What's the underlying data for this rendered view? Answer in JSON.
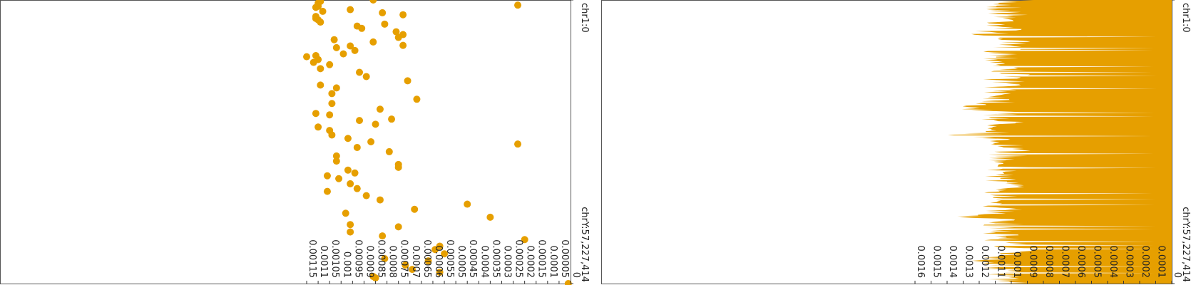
{
  "colors": {
    "accent": "#E69F00",
    "frame": "#555555",
    "tick": "#333333"
  },
  "chart_data": [
    {
      "type": "scatter",
      "orientation": "vertical-genome-track",
      "genome_axis": {
        "start_label": "chr1:0",
        "end_label": "chrY:57,227,414"
      },
      "value_axis": {
        "range": [
          0,
          0.00115
        ],
        "ticks": [
          0.00115,
          0.0011,
          0.00105,
          0.001,
          0.00095,
          0.0009,
          0.00085,
          0.0008,
          0.00075,
          0.0007,
          0.00065,
          0.0006,
          0.00055,
          0.0005,
          0.00045,
          0.0004,
          0.00035,
          0.0003,
          0.00025,
          0.0002,
          0.00015,
          0.0001,
          5e-05,
          0
        ],
        "tick_labels": [
          "0.00115",
          "0.0011",
          "0.00105",
          "0.001",
          "0.00095",
          "0.0009",
          "0.00085",
          "0.0008",
          "0.00075",
          "0.0007",
          "0.00065",
          "0.0006",
          "0.00055",
          "0.0005",
          "0.00045",
          "0.0004",
          "0.00035",
          "0.0003",
          "0.00025",
          "0.0002",
          "0.00015",
          "0.0001",
          "0.00005",
          "0"
        ]
      },
      "points": [
        {
          "g": 0.0,
          "v": 0.00086
        },
        {
          "g": 0.005,
          "v": 0.00109
        },
        {
          "g": 0.011,
          "v": 0.0011
        },
        {
          "g": 0.018,
          "v": 0.00023
        },
        {
          "g": 0.022,
          "v": 0.0011
        },
        {
          "g": 0.026,
          "v": 0.00111
        },
        {
          "g": 0.034,
          "v": 0.00096
        },
        {
          "g": 0.04,
          "v": 0.00108
        },
        {
          "g": 0.045,
          "v": 0.00082
        },
        {
          "g": 0.052,
          "v": 0.00073
        },
        {
          "g": 0.058,
          "v": 0.00111
        },
        {
          "g": 0.065,
          "v": 0.00111
        },
        {
          "g": 0.07,
          "v": 0.0011
        },
        {
          "g": 0.078,
          "v": 0.00109
        },
        {
          "g": 0.085,
          "v": 0.00081
        },
        {
          "g": 0.092,
          "v": 0.00093
        },
        {
          "g": 0.1,
          "v": 0.00091
        },
        {
          "g": 0.112,
          "v": 0.00076
        },
        {
          "g": 0.122,
          "v": 0.00073
        },
        {
          "g": 0.132,
          "v": 0.00075
        },
        {
          "g": 0.14,
          "v": 0.00103
        },
        {
          "g": 0.148,
          "v": 0.00086
        },
        {
          "g": 0.16,
          "v": 0.00073
        },
        {
          "g": 0.162,
          "v": 0.00096
        },
        {
          "g": 0.168,
          "v": 0.00102
        },
        {
          "g": 0.178,
          "v": 0.00094
        },
        {
          "g": 0.19,
          "v": 0.00099
        },
        {
          "g": 0.196,
          "v": 0.00111
        },
        {
          "g": 0.2,
          "v": 0.00115
        },
        {
          "g": 0.21,
          "v": 0.0011
        },
        {
          "g": 0.22,
          "v": 0.00112
        },
        {
          "g": 0.228,
          "v": 0.00105
        },
        {
          "g": 0.242,
          "v": 0.00109
        },
        {
          "g": 0.255,
          "v": 0.00092
        },
        {
          "g": 0.27,
          "v": 0.00089
        },
        {
          "g": 0.285,
          "v": 0.00071
        },
        {
          "g": 0.3,
          "v": 0.00109
        },
        {
          "g": 0.31,
          "v": 0.00102
        },
        {
          "g": 0.33,
          "v": 0.00104
        },
        {
          "g": 0.35,
          "v": 0.00067
        },
        {
          "g": 0.365,
          "v": 0.00104
        },
        {
          "g": 0.385,
          "v": 0.00083
        },
        {
          "g": 0.4,
          "v": 0.00111
        },
        {
          "g": 0.405,
          "v": 0.00105
        },
        {
          "g": 0.42,
          "v": 0.00078
        },
        {
          "g": 0.425,
          "v": 0.00092
        },
        {
          "g": 0.438,
          "v": 0.00085
        },
        {
          "g": 0.448,
          "v": 0.0011
        },
        {
          "g": 0.46,
          "v": 0.00105
        },
        {
          "g": 0.476,
          "v": 0.00104
        },
        {
          "g": 0.488,
          "v": 0.00097
        },
        {
          "g": 0.5,
          "v": 0.00087
        },
        {
          "g": 0.508,
          "v": 0.00023
        },
        {
          "g": 0.52,
          "v": 0.00093
        },
        {
          "g": 0.535,
          "v": 0.00079
        },
        {
          "g": 0.55,
          "v": 0.00102
        },
        {
          "g": 0.568,
          "v": 0.00102
        },
        {
          "g": 0.58,
          "v": 0.00075
        },
        {
          "g": 0.59,
          "v": 0.00075
        },
        {
          "g": 0.6,
          "v": 0.00097
        },
        {
          "g": 0.61,
          "v": 0.00094
        },
        {
          "g": 0.62,
          "v": 0.00106
        },
        {
          "g": 0.63,
          "v": 0.00101
        },
        {
          "g": 0.648,
          "v": 0.00096
        },
        {
          "g": 0.665,
          "v": 0.00093
        },
        {
          "g": 0.675,
          "v": 0.00106
        },
        {
          "g": 0.69,
          "v": 0.00089
        },
        {
          "g": 0.705,
          "v": 0.00083
        },
        {
          "g": 0.72,
          "v": 0.00045
        },
        {
          "g": 0.738,
          "v": 0.00068
        },
        {
          "g": 0.752,
          "v": 0.00098
        },
        {
          "g": 0.766,
          "v": 0.00035
        },
        {
          "g": 0.792,
          "v": 0.00096
        },
        {
          "g": 0.8,
          "v": 0.00075
        },
        {
          "g": 0.818,
          "v": 0.00096
        },
        {
          "g": 0.832,
          "v": 0.00082
        },
        {
          "g": 0.845,
          "v": 0.0002
        },
        {
          "g": 0.868,
          "v": 0.00057
        },
        {
          "g": 0.88,
          "v": 0.00059
        },
        {
          "g": 0.895,
          "v": 0.00055
        },
        {
          "g": 0.912,
          "v": 0.00081
        },
        {
          "g": 0.92,
          "v": 0.00062
        },
        {
          "g": 0.935,
          "v": 0.00072
        },
        {
          "g": 0.95,
          "v": 0.00069
        },
        {
          "g": 0.96,
          "v": 0.00057
        },
        {
          "g": 0.975,
          "v": 0.00086
        },
        {
          "g": 0.98,
          "v": 0.00085
        },
        {
          "g": 1.0,
          "v": 1e-05
        }
      ]
    },
    {
      "type": "area",
      "orientation": "vertical-genome-track",
      "genome_axis": {
        "start_label": "chr1:0",
        "end_label": "chrY:57,227,414"
      },
      "value_axis": {
        "range": [
          0,
          0.0016
        ],
        "ticks": [
          0.0016,
          0.0015,
          0.0014,
          0.0013,
          0.0012,
          0.0011,
          0.001,
          0.0009,
          0.0008,
          0.0007,
          0.0006,
          0.0005,
          0.0004,
          0.0003,
          0.0002,
          0.0001,
          0
        ],
        "tick_labels": [
          "0.0016",
          "0.0015",
          "0.0014",
          "0.0013",
          "0.0012",
          "0.0011",
          "0.001",
          "0.0009",
          "0.0008",
          "0.0007",
          "0.0006",
          "0.0005",
          "0.0004",
          "0.0003",
          "0.0002",
          "0.0001",
          "0"
        ]
      },
      "profile_knots": [
        [
          0.0,
          0.00105
        ],
        [
          0.02,
          0.0011
        ],
        [
          0.04,
          0.0011
        ],
        [
          0.06,
          0.00106
        ],
        [
          0.08,
          0.0011
        ],
        [
          0.1,
          0.00109
        ],
        [
          0.12,
          0.0012
        ],
        [
          0.14,
          0.00104
        ],
        [
          0.16,
          0.00113
        ],
        [
          0.18,
          0.0011
        ],
        [
          0.2,
          0.00109
        ],
        [
          0.22,
          0.00112
        ],
        [
          0.24,
          0.0011
        ],
        [
          0.26,
          0.00106
        ],
        [
          0.28,
          0.0011
        ],
        [
          0.3,
          0.00109
        ],
        [
          0.32,
          0.0011
        ],
        [
          0.34,
          0.00111
        ],
        [
          0.36,
          0.00112
        ],
        [
          0.38,
          0.0013
        ],
        [
          0.4,
          0.00111
        ],
        [
          0.42,
          0.00112
        ],
        [
          0.44,
          0.0011
        ],
        [
          0.46,
          0.00109
        ],
        [
          0.48,
          0.00135
        ],
        [
          0.5,
          0.0011
        ],
        [
          0.52,
          0.00111
        ],
        [
          0.54,
          0.00105
        ],
        [
          0.56,
          0.00112
        ],
        [
          0.58,
          0.00104
        ],
        [
          0.6,
          0.00111
        ],
        [
          0.62,
          0.0011
        ],
        [
          0.64,
          0.00112
        ],
        [
          0.66,
          0.00108
        ],
        [
          0.68,
          0.0011
        ],
        [
          0.7,
          0.00109
        ],
        [
          0.72,
          0.0011
        ],
        [
          0.74,
          0.00112
        ],
        [
          0.76,
          0.0013
        ],
        [
          0.78,
          0.00114
        ],
        [
          0.8,
          0.0011
        ],
        [
          0.82,
          0.00112
        ],
        [
          0.84,
          0.0011
        ],
        [
          0.86,
          0.00108
        ],
        [
          0.88,
          0.00102
        ],
        [
          0.9,
          0.0011
        ],
        [
          0.92,
          0.0012
        ],
        [
          0.94,
          0.0011
        ],
        [
          0.96,
          0.00114
        ],
        [
          0.98,
          0.0011
        ],
        [
          1.0,
          0.00109
        ]
      ]
    }
  ]
}
